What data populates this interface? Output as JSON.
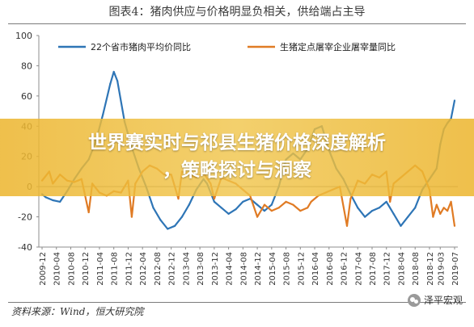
{
  "caption": "图表4：猪肉供应与价格明显负相关，供给端占主导",
  "source": "资料来源：Wind，恒大研究院",
  "watermark": "泽平宏观",
  "banner": {
    "line1": "世界赛实时与祁县生猪价格深度解析",
    "line2": "，策略探讨与洞察"
  },
  "colors": {
    "series1": "#2e75b6",
    "series2": "#e07b24",
    "banner": "#ecb52e"
  },
  "chart_data": {
    "type": "line",
    "title": "",
    "xlabel": "",
    "ylabel": "",
    "ylim": [
      -40,
      100
    ],
    "yticks": [
      -40,
      -20,
      0,
      20,
      40,
      60,
      80,
      100
    ],
    "grid": false,
    "legend_position": "top",
    "x_start": "2009-12",
    "x_end": "2019-07",
    "x_tick_labels": [
      "2009-12",
      "2010-04",
      "2010-08",
      "2010-12",
      "2011-04",
      "2011-08",
      "2011-12",
      "2012-04",
      "2012-08",
      "2012-12",
      "2013-04",
      "2013-08",
      "2013-12",
      "2014-04",
      "2014-08",
      "2014-12",
      "2015-04",
      "2015-08",
      "2015-12",
      "2016-04",
      "2016-08",
      "2016-12",
      "2017-04",
      "2017-08",
      "2017-12",
      "2018-04",
      "2018-08",
      "2018-12",
      "2019-03",
      "2019-07"
    ],
    "series": [
      {
        "name": "22个省市猪肉平均价同比",
        "color": "#2e75b6",
        "points": [
          [
            "2009-12",
            -5
          ],
          [
            "2010-01",
            -7
          ],
          [
            "2010-03",
            -9
          ],
          [
            "2010-05",
            -10
          ],
          [
            "2010-07",
            -3
          ],
          [
            "2010-09",
            5
          ],
          [
            "2010-11",
            12
          ],
          [
            "2011-01",
            18
          ],
          [
            "2011-03",
            30
          ],
          [
            "2011-05",
            48
          ],
          [
            "2011-07",
            68
          ],
          [
            "2011-08",
            76
          ],
          [
            "2011-09",
            70
          ],
          [
            "2011-11",
            43
          ],
          [
            "2012-01",
            26
          ],
          [
            "2012-03",
            12
          ],
          [
            "2012-05",
            0
          ],
          [
            "2012-07",
            -14
          ],
          [
            "2012-09",
            -22
          ],
          [
            "2012-11",
            -28
          ],
          [
            "2013-01",
            -26
          ],
          [
            "2013-03",
            -20
          ],
          [
            "2013-05",
            -12
          ],
          [
            "2013-07",
            -2
          ],
          [
            "2013-09",
            5
          ],
          [
            "2013-10",
            2
          ],
          [
            "2013-12",
            -10
          ],
          [
            "2014-02",
            -14
          ],
          [
            "2014-04",
            -18
          ],
          [
            "2014-06",
            -15
          ],
          [
            "2014-08",
            -10
          ],
          [
            "2014-10",
            -8
          ],
          [
            "2014-12",
            -12
          ],
          [
            "2015-02",
            -16
          ],
          [
            "2015-04",
            -12
          ],
          [
            "2015-06",
            0
          ],
          [
            "2015-08",
            18
          ],
          [
            "2015-10",
            22
          ],
          [
            "2015-12",
            18
          ],
          [
            "2016-02",
            25
          ],
          [
            "2016-04",
            38
          ],
          [
            "2016-06",
            40
          ],
          [
            "2016-08",
            24
          ],
          [
            "2016-10",
            12
          ],
          [
            "2016-12",
            5
          ],
          [
            "2017-02",
            -5
          ],
          [
            "2017-04",
            -14
          ],
          [
            "2017-06",
            -20
          ],
          [
            "2017-08",
            -16
          ],
          [
            "2017-10",
            -14
          ],
          [
            "2017-12",
            -10
          ],
          [
            "2018-02",
            -18
          ],
          [
            "2018-04",
            -26
          ],
          [
            "2018-06",
            -20
          ],
          [
            "2018-08",
            -14
          ],
          [
            "2018-10",
            -2
          ],
          [
            "2018-12",
            5
          ],
          [
            "2019-02",
            12
          ],
          [
            "2019-03",
            28
          ],
          [
            "2019-04",
            38
          ],
          [
            "2019-05",
            42
          ],
          [
            "2019-06",
            45
          ],
          [
            "2019-07",
            57
          ]
        ]
      },
      {
        "name": "生猪定点屠宰企业屠宰量同比",
        "color": "#e07b24",
        "points": [
          [
            "2009-12",
            4
          ],
          [
            "2010-02",
            10
          ],
          [
            "2010-03",
            2
          ],
          [
            "2010-05",
            8
          ],
          [
            "2010-07",
            4
          ],
          [
            "2010-09",
            3
          ],
          [
            "2010-11",
            5
          ],
          [
            "2011-01",
            -17
          ],
          [
            "2011-02",
            2
          ],
          [
            "2011-04",
            -4
          ],
          [
            "2011-06",
            -6
          ],
          [
            "2011-08",
            -3
          ],
          [
            "2011-10",
            -4
          ],
          [
            "2011-12",
            4
          ],
          [
            "2012-01",
            -20
          ],
          [
            "2012-02",
            2
          ],
          [
            "2012-04",
            10
          ],
          [
            "2012-06",
            14
          ],
          [
            "2012-08",
            12
          ],
          [
            "2012-10",
            8
          ],
          [
            "2012-12",
            8
          ],
          [
            "2013-02",
            -8
          ],
          [
            "2013-03",
            10
          ],
          [
            "2013-05",
            8
          ],
          [
            "2013-07",
            6
          ],
          [
            "2013-09",
            9
          ],
          [
            "2013-11",
            2
          ],
          [
            "2013-12",
            -8
          ],
          [
            "2014-02",
            6
          ],
          [
            "2014-04",
            4
          ],
          [
            "2014-06",
            2
          ],
          [
            "2014-08",
            -2
          ],
          [
            "2014-10",
            -6
          ],
          [
            "2014-12",
            -20
          ],
          [
            "2015-02",
            -12
          ],
          [
            "2015-04",
            -16
          ],
          [
            "2015-06",
            -14
          ],
          [
            "2015-08",
            -10
          ],
          [
            "2015-10",
            -12
          ],
          [
            "2015-12",
            -16
          ],
          [
            "2016-02",
            -14
          ],
          [
            "2016-03",
            -10
          ],
          [
            "2016-05",
            -6
          ],
          [
            "2016-07",
            -4
          ],
          [
            "2016-09",
            -2
          ],
          [
            "2016-11",
            0
          ],
          [
            "2017-01",
            -26
          ],
          [
            "2017-02",
            -8
          ],
          [
            "2017-04",
            4
          ],
          [
            "2017-06",
            2
          ],
          [
            "2017-08",
            8
          ],
          [
            "2017-10",
            6
          ],
          [
            "2017-12",
            10
          ],
          [
            "2018-01",
            -10
          ],
          [
            "2018-02",
            2
          ],
          [
            "2018-04",
            6
          ],
          [
            "2018-06",
            10
          ],
          [
            "2018-08",
            14
          ],
          [
            "2018-10",
            10
          ],
          [
            "2018-12",
            -2
          ],
          [
            "2019-01",
            -20
          ],
          [
            "2019-02",
            -12
          ],
          [
            "2019-03",
            -18
          ],
          [
            "2019-04",
            -14
          ],
          [
            "2019-05",
            -16
          ],
          [
            "2019-06",
            -10
          ],
          [
            "2019-07",
            -26
          ]
        ]
      }
    ]
  }
}
